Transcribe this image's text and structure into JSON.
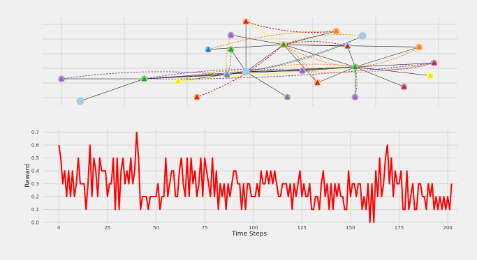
{
  "colors": {
    "figure_background": "#f0f0f0",
    "grid": "#d9d9d9",
    "reward_line": "#ff0000",
    "node_blue": "#a6cde8",
    "edge_black": "#222222",
    "edge_orange": "#ff7f0e",
    "edge_yellow": "#f5f57a",
    "edge_purple": "#7b3f9e",
    "edge_green": "#2ca02c",
    "edge_red": "#cc0000",
    "tri_red": "#d62728",
    "tri_purple": "#9467bd",
    "tri_green": "#2ca02c",
    "tri_blue": "#1f77b4",
    "tri_orange": "#ff7f0e"
  },
  "chart_data": [
    {
      "type": "network",
      "title": "",
      "grid": true,
      "nodes": [
        {
          "id": "A",
          "x": 0.0,
          "y": 0.28,
          "shape": "circle",
          "color": "purple",
          "marker": "triangle-purple"
        },
        {
          "id": "B",
          "x": 0.05,
          "y": 0.0,
          "shape": "circle",
          "color": "blue",
          "marker": "none"
        },
        {
          "id": "C",
          "x": 0.22,
          "y": 0.28,
          "shape": "circle",
          "color": "green",
          "marker": "triangle-green"
        },
        {
          "id": "D",
          "x": 0.31,
          "y": 0.25,
          "shape": "circle",
          "color": "yellow",
          "marker": "triangle-yellow"
        },
        {
          "id": "E",
          "x": 0.36,
          "y": 0.05,
          "shape": "circle",
          "color": "orange",
          "marker": "triangle-red"
        },
        {
          "id": "F",
          "x": 0.39,
          "y": 0.65,
          "shape": "circle",
          "color": "blue",
          "marker": "triangle-blue"
        },
        {
          "id": "G",
          "x": 0.44,
          "y": 0.33,
          "shape": "circle",
          "color": "green",
          "marker": "triangle-purple"
        },
        {
          "id": "H",
          "x": 0.45,
          "y": 0.65,
          "shape": "circle",
          "color": "green",
          "marker": "triangle-green"
        },
        {
          "id": "I",
          "x": 0.45,
          "y": 0.83,
          "shape": "circle",
          "color": "purple",
          "marker": "triangle-purple"
        },
        {
          "id": "J",
          "x": 0.49,
          "y": 0.37,
          "shape": "circle",
          "color": "blue",
          "marker": "none"
        },
        {
          "id": "K",
          "x": 0.49,
          "y": 1.0,
          "shape": "circle",
          "color": "orange",
          "marker": "triangle-red"
        },
        {
          "id": "L",
          "x": 0.59,
          "y": 0.71,
          "shape": "circle",
          "color": "orange",
          "marker": "triangle-green"
        },
        {
          "id": "M",
          "x": 0.6,
          "y": 0.05,
          "shape": "circle",
          "color": "green",
          "marker": "triangle-purple"
        },
        {
          "id": "N",
          "x": 0.64,
          "y": 0.38,
          "shape": "circle",
          "color": "purple",
          "marker": "triangle-purple"
        },
        {
          "id": "O",
          "x": 0.68,
          "y": 0.23,
          "shape": "circle",
          "color": "orange",
          "marker": "triangle-red"
        },
        {
          "id": "P",
          "x": 0.73,
          "y": 0.88,
          "shape": "circle",
          "color": "orange",
          "marker": "triangle-orange"
        },
        {
          "id": "Q",
          "x": 0.76,
          "y": 0.69,
          "shape": "circle",
          "color": "blue",
          "marker": "triangle-red"
        },
        {
          "id": "R",
          "x": 0.78,
          "y": 0.43,
          "shape": "circle",
          "color": "green",
          "marker": "triangle-green"
        },
        {
          "id": "S",
          "x": 0.78,
          "y": 0.05,
          "shape": "circle",
          "color": "purple",
          "marker": "triangle-purple"
        },
        {
          "id": "T",
          "x": 0.8,
          "y": 0.82,
          "shape": "circle",
          "color": "blue",
          "marker": "none"
        },
        {
          "id": "U",
          "x": 0.91,
          "y": 0.18,
          "shape": "circle",
          "color": "purple",
          "marker": "triangle-red"
        },
        {
          "id": "V",
          "x": 0.95,
          "y": 0.68,
          "shape": "circle",
          "color": "orange",
          "marker": "triangle-orange"
        },
        {
          "id": "W",
          "x": 0.98,
          "y": 0.32,
          "shape": "circle",
          "color": "yellow",
          "marker": "triangle-yellow"
        },
        {
          "id": "X",
          "x": 0.99,
          "y": 0.48,
          "shape": "circle",
          "color": "purple",
          "marker": "triangle-red"
        }
      ],
      "edges": [
        {
          "from": "A",
          "to": "C",
          "style": "solid",
          "color": "black"
        },
        {
          "from": "B",
          "to": "C",
          "style": "solid",
          "color": "black"
        },
        {
          "from": "C",
          "to": "J",
          "style": "solid",
          "color": "black"
        },
        {
          "from": "C",
          "to": "G",
          "style": "solid",
          "color": "black"
        },
        {
          "from": "C",
          "to": "R",
          "style": "solid",
          "color": "black"
        },
        {
          "from": "D",
          "to": "J",
          "style": "solid",
          "color": "black"
        },
        {
          "from": "D",
          "to": "R",
          "style": "solid",
          "color": "yellow"
        },
        {
          "from": "F",
          "to": "L",
          "style": "solid",
          "color": "black"
        },
        {
          "from": "G",
          "to": "J",
          "style": "solid",
          "color": "black"
        },
        {
          "from": "H",
          "to": "J",
          "style": "solid",
          "color": "black"
        },
        {
          "from": "I",
          "to": "L",
          "style": "solid",
          "color": "black"
        },
        {
          "from": "J",
          "to": "L",
          "style": "solid",
          "color": "black"
        },
        {
          "from": "J",
          "to": "N",
          "style": "solid",
          "color": "black"
        },
        {
          "from": "J",
          "to": "R",
          "style": "solid",
          "color": "black"
        },
        {
          "from": "J",
          "to": "M",
          "style": "solid",
          "color": "black"
        },
        {
          "from": "K",
          "to": "L",
          "style": "solid",
          "color": "yellow"
        },
        {
          "from": "K",
          "to": "J",
          "style": "solid",
          "color": "black"
        },
        {
          "from": "L",
          "to": "O",
          "style": "solid",
          "color": "black"
        },
        {
          "from": "L",
          "to": "P",
          "style": "solid",
          "color": "black"
        },
        {
          "from": "L",
          "to": "R",
          "style": "solid",
          "color": "black"
        },
        {
          "from": "L",
          "to": "Q",
          "style": "solid",
          "color": "black"
        },
        {
          "from": "L",
          "to": "V",
          "style": "solid",
          "color": "black"
        },
        {
          "from": "N",
          "to": "R",
          "style": "solid",
          "color": "black"
        },
        {
          "from": "O",
          "to": "R",
          "style": "solid",
          "color": "black"
        },
        {
          "from": "Q",
          "to": "R",
          "style": "solid",
          "color": "black"
        },
        {
          "from": "R",
          "to": "V",
          "style": "solid",
          "color": "black"
        },
        {
          "from": "R",
          "to": "W",
          "style": "solid",
          "color": "black"
        },
        {
          "from": "R",
          "to": "X",
          "style": "solid",
          "color": "black"
        },
        {
          "from": "R",
          "to": "U",
          "style": "solid",
          "color": "black"
        },
        {
          "from": "R",
          "to": "S",
          "style": "solid",
          "color": "black"
        },
        {
          "from": "A",
          "to": "G",
          "style": "dashed",
          "color": "purple"
        },
        {
          "from": "C",
          "to": "X",
          "style": "dashed",
          "color": "purple"
        },
        {
          "from": "F",
          "to": "P",
          "style": "dashed",
          "color": "orange"
        },
        {
          "from": "K",
          "to": "P",
          "style": "dashed",
          "color": "red"
        },
        {
          "from": "L",
          "to": "T",
          "style": "dashed",
          "color": "orange"
        },
        {
          "from": "G",
          "to": "T",
          "style": "dashed",
          "color": "purple"
        },
        {
          "from": "H",
          "to": "G",
          "style": "dashed",
          "color": "green"
        },
        {
          "from": "I",
          "to": "G",
          "style": "dashed",
          "color": "orange"
        },
        {
          "from": "R",
          "to": "S",
          "style": "dashed",
          "color": "green"
        },
        {
          "from": "L",
          "to": "R",
          "style": "dashed",
          "color": "orange"
        },
        {
          "from": "J",
          "to": "R",
          "style": "dashed",
          "color": "orange"
        },
        {
          "from": "E",
          "to": "L",
          "style": "dashed",
          "color": "red"
        },
        {
          "from": "L",
          "to": "Q",
          "style": "dashed",
          "color": "red"
        },
        {
          "from": "N",
          "to": "X",
          "style": "dashed",
          "color": "orange"
        },
        {
          "from": "D",
          "to": "J",
          "style": "dashed",
          "color": "orange"
        },
        {
          "from": "R",
          "to": "V",
          "style": "dashed",
          "color": "orange"
        },
        {
          "from": "C",
          "to": "N",
          "style": "dashed",
          "color": "purple"
        },
        {
          "from": "J",
          "to": "T",
          "style": "dashed",
          "color": "green"
        },
        {
          "from": "L",
          "to": "O",
          "style": "dashed",
          "color": "orange"
        },
        {
          "from": "R",
          "to": "X",
          "style": "dashed",
          "color": "purple"
        }
      ]
    },
    {
      "type": "line",
      "title": "",
      "xlabel": "Time Steps",
      "ylabel": "Reward",
      "xlim": [
        -8,
        205
      ],
      "ylim": [
        0.0,
        0.72
      ],
      "xticks": [
        0,
        25,
        50,
        75,
        100,
        125,
        150,
        175,
        200
      ],
      "yticks": [
        0.0,
        0.1,
        0.2,
        0.3,
        0.4,
        0.5,
        0.6,
        0.7
      ],
      "ytick_labels": [
        "0.0",
        "0.1",
        "0.2",
        "0.3",
        "0.4",
        "0.5",
        "0.6",
        "0.7"
      ],
      "grid": true,
      "series": [
        {
          "values": [
            0.6,
            0.5,
            0.3,
            0.4,
            0.2,
            0.4,
            0.2,
            0.4,
            0.2,
            0.3,
            0.5,
            0.3,
            0.3,
            0.3,
            0.1,
            0.3,
            0.6,
            0.2,
            0.5,
            0.4,
            0.2,
            0.5,
            0.4,
            0.4,
            0.4,
            0.2,
            0.3,
            0.3,
            0.5,
            0.1,
            0.5,
            0.1,
            0.4,
            0.5,
            0.3,
            0.4,
            0.3,
            0.5,
            0.3,
            0.4,
            0.7,
            0.5,
            0.1,
            0.2,
            0.2,
            0.2,
            0.1,
            0.2,
            0.2,
            0.2,
            0.2,
            0.3,
            0.1,
            0.2,
            0.2,
            0.5,
            0.2,
            0.3,
            0.4,
            0.4,
            0.2,
            0.2,
            0.4,
            0.5,
            0.3,
            0.2,
            0.5,
            0.2,
            0.5,
            0.3,
            0.4,
            0.2,
            0.3,
            0.5,
            0.2,
            0.5,
            0.4,
            0.3,
            0.2,
            0.5,
            0.2,
            0.4,
            0.1,
            0.3,
            0.2,
            0.3,
            0.1,
            0.3,
            0.2,
            0.3,
            0.4,
            0.4,
            0.3,
            0.3,
            0.1,
            0.3,
            0.1,
            0.3,
            0.3,
            0.2,
            0.2,
            0.2,
            0.3,
            0.2,
            0.4,
            0.3,
            0.3,
            0.4,
            0.3,
            0.4,
            0.3,
            0.4,
            0.3,
            0.2,
            0.2,
            0.3,
            0.3,
            0.3,
            0.2,
            0.3,
            0.1,
            0.3,
            0.2,
            0.3,
            0.4,
            0.2,
            0.3,
            0.2,
            0.2,
            0.3,
            0.1,
            0.1,
            0.2,
            0.2,
            0.1,
            0.3,
            0.4,
            0.2,
            0.3,
            0.1,
            0.3,
            0.1,
            0.3,
            0.2,
            0.3,
            0.2,
            0.2,
            0.1,
            0.1,
            0.4,
            0.2,
            0.3,
            0.3,
            0.2,
            0.3,
            0.3,
            0.1,
            0.2,
            0.1,
            0.3,
            0.0,
            0.3,
            0.0,
            0.4,
            0.2,
            0.5,
            0.2,
            0.3,
            0.5,
            0.6,
            0.3,
            0.5,
            0.2,
            0.4,
            0.3,
            0.3,
            0.4,
            0.1,
            0.1,
            0.4,
            0.1,
            0.2,
            0.3,
            0.1,
            0.1,
            0.3,
            0.3,
            0.2,
            0.2,
            0.1,
            0.3,
            0.2,
            0.3,
            0.1,
            0.2,
            0.1,
            0.2,
            0.1,
            0.2,
            0.1,
            0.2,
            0.1,
            0.3
          ]
        }
      ]
    }
  ]
}
